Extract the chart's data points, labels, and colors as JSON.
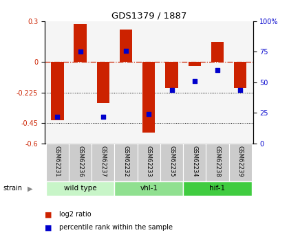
{
  "title": "GDS1379 / 1887",
  "samples": [
    "GSM62231",
    "GSM62236",
    "GSM62237",
    "GSM62232",
    "GSM62233",
    "GSM62235",
    "GSM62234",
    "GSM62238",
    "GSM62239"
  ],
  "log2_ratios": [
    -0.43,
    0.28,
    -0.3,
    0.24,
    -0.52,
    -0.19,
    -0.03,
    0.15,
    -0.19
  ],
  "percentile_ranks": [
    22,
    75,
    22,
    76,
    24,
    44,
    51,
    60,
    44
  ],
  "groups": [
    {
      "label": "wild type",
      "start": 0,
      "end": 3,
      "color": "#c8f5c8"
    },
    {
      "label": "vhl-1",
      "start": 3,
      "end": 6,
      "color": "#90e090"
    },
    {
      "label": "hif-1",
      "start": 6,
      "end": 9,
      "color": "#40cc40"
    }
  ],
  "ylim_left": [
    -0.6,
    0.3
  ],
  "ylim_right": [
    0,
    100
  ],
  "yticks_left": [
    0.3,
    0.0,
    -0.225,
    -0.45,
    -0.6
  ],
  "yticks_right": [
    100,
    75,
    50,
    25,
    0
  ],
  "dotted_lines": [
    -0.225,
    -0.45
  ],
  "bar_color": "#cc2200",
  "dot_color": "#0000cc",
  "bar_width": 0.55,
  "strain_label": "strain",
  "legend_items": [
    {
      "label": "log2 ratio",
      "color": "#cc2200"
    },
    {
      "label": "percentile rank within the sample",
      "color": "#0000cc"
    }
  ]
}
